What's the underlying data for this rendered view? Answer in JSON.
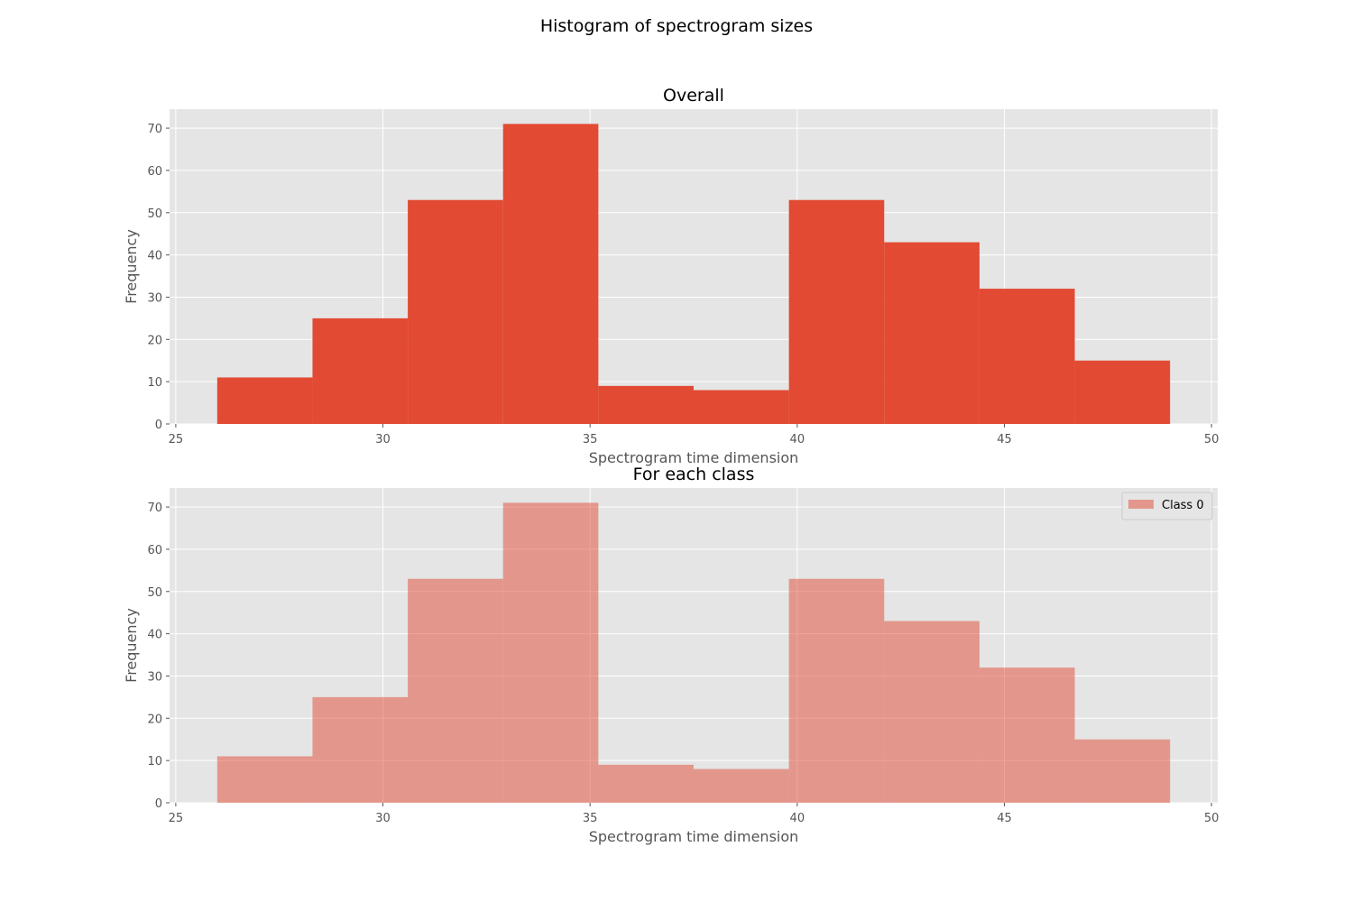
{
  "figure_title": "Histogram of spectrogram sizes",
  "colors": {
    "background": "#ffffff",
    "axes_face": "#e5e5e5",
    "grid": "#ffffff",
    "bar": "#e24a33",
    "text": "#555555"
  },
  "chart_data": [
    {
      "type": "bar",
      "title": "Overall",
      "xlabel": "Spectrogram time dimension",
      "ylabel": "Frequency",
      "xlim": [
        24.85,
        50.15
      ],
      "ylim": [
        0,
        74.5
      ],
      "xticks": [
        25,
        30,
        35,
        40,
        45,
        50
      ],
      "yticks": [
        0,
        10,
        20,
        30,
        40,
        50,
        60,
        70
      ],
      "grid": true,
      "bin_edges": [
        26.0,
        28.3,
        30.6,
        32.9,
        35.2,
        37.5,
        39.8,
        42.1,
        44.4,
        46.7,
        49.0
      ],
      "series": [
        {
          "values": [
            11,
            25,
            53,
            71,
            9,
            8,
            53,
            43,
            32,
            15
          ],
          "color": "#e24a33",
          "opacity": 1.0
        }
      ]
    },
    {
      "type": "bar",
      "title": "For each class",
      "xlabel": "Spectrogram time dimension",
      "ylabel": "Frequency",
      "xlim": [
        24.85,
        50.15
      ],
      "ylim": [
        0,
        74.5
      ],
      "xticks": [
        25,
        30,
        35,
        40,
        45,
        50
      ],
      "yticks": [
        0,
        10,
        20,
        30,
        40,
        50,
        60,
        70
      ],
      "grid": true,
      "legend_position": "top-right",
      "bin_edges": [
        26.0,
        28.3,
        30.6,
        32.9,
        35.2,
        37.5,
        39.8,
        42.1,
        44.4,
        46.7,
        49.0
      ],
      "series": [
        {
          "name": "Class 0",
          "values": [
            11,
            25,
            53,
            71,
            9,
            8,
            53,
            43,
            32,
            15
          ],
          "color": "#e24a33",
          "opacity": 0.5
        }
      ]
    }
  ]
}
